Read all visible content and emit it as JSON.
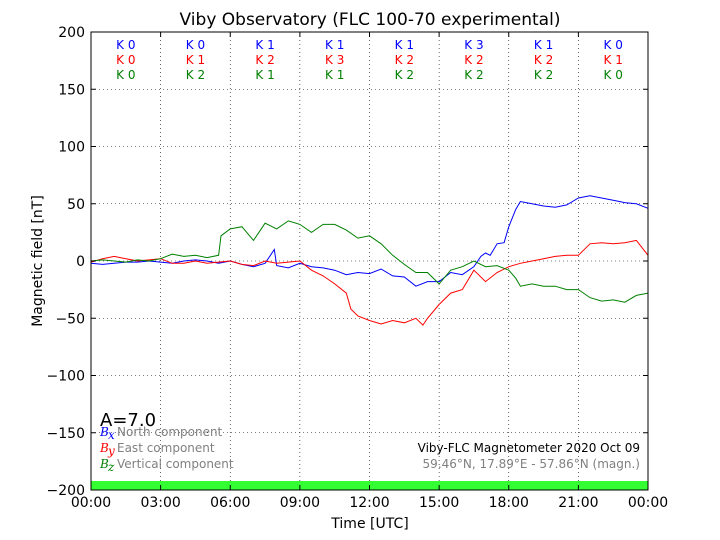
{
  "chart_data": {
    "type": "line",
    "title": "Viby Observatory (FLC 100-70 experimental)",
    "xlabel": "Time [UTC]",
    "ylabel": "Magnetic field [nT]",
    "xlim": [
      0,
      24
    ],
    "ylim": [
      -200,
      200
    ],
    "x_ticks": [
      {
        "v": 0,
        "label": "00:00"
      },
      {
        "v": 3,
        "label": "03:00"
      },
      {
        "v": 6,
        "label": "06:00"
      },
      {
        "v": 9,
        "label": "09:00"
      },
      {
        "v": 12,
        "label": "12:00"
      },
      {
        "v": 15,
        "label": "15:00"
      },
      {
        "v": 18,
        "label": "18:00"
      },
      {
        "v": 21,
        "label": "21:00"
      },
      {
        "v": 24,
        "label": "00:00"
      }
    ],
    "y_ticks": [
      {
        "v": 200,
        "label": "200"
      },
      {
        "v": 150,
        "label": "150"
      },
      {
        "v": 100,
        "label": "100"
      },
      {
        "v": 50,
        "label": "50"
      },
      {
        "v": 0,
        "label": "0"
      },
      {
        "v": -50,
        "label": "−50"
      },
      {
        "v": -100,
        "label": "−100"
      },
      {
        "v": -150,
        "label": "−150"
      },
      {
        "v": -200,
        "label": "−200"
      }
    ],
    "grid": true,
    "series": [
      {
        "name": "North component",
        "symbol": "B",
        "subscript": "x",
        "color": "#0000ff",
        "x": [
          0,
          0.5,
          1,
          1.5,
          2,
          2.5,
          3,
          3.5,
          4,
          4.5,
          5,
          5.5,
          6,
          6.5,
          7,
          7.5,
          7.9,
          8,
          8.5,
          9,
          9.5,
          10,
          10.5,
          11,
          11.5,
          12,
          12.5,
          13,
          13.5,
          14,
          14.5,
          15,
          15.5,
          16,
          16.5,
          16.8,
          17,
          17.2,
          17.5,
          17.8,
          18,
          18.3,
          18.5,
          19,
          19.5,
          20,
          20.5,
          21,
          21.5,
          22,
          22.5,
          23,
          23.5,
          24
        ],
        "y": [
          -2,
          -3,
          -2,
          -1,
          -1,
          0,
          -1,
          -2,
          0,
          1,
          0,
          -2,
          0,
          -3,
          -5,
          -2,
          10,
          -4,
          -6,
          -2,
          -5,
          -6,
          -8,
          -12,
          -10,
          -11,
          -7,
          -13,
          -14,
          -22,
          -18,
          -18,
          -10,
          -12,
          -5,
          4,
          7,
          5,
          15,
          16,
          30,
          45,
          52,
          50,
          48,
          47,
          49,
          55,
          57,
          55,
          53,
          51,
          50,
          46
        ],
        "label_sub": "x"
      },
      {
        "name": "East component",
        "symbol": "B",
        "subscript": "y",
        "color": "#ff0000",
        "x": [
          0,
          0.5,
          1,
          1.5,
          2,
          2.5,
          3,
          3.5,
          4,
          4.5,
          5,
          5.5,
          6,
          6.5,
          7,
          7.5,
          8,
          8.5,
          9,
          9.5,
          10,
          10.5,
          11,
          11.2,
          11.5,
          12,
          12.5,
          13,
          13.5,
          14,
          14.3,
          14.5,
          15,
          15.5,
          16,
          16.5,
          17,
          17.5,
          18,
          18.5,
          19,
          19.5,
          20,
          20.5,
          21,
          21.5,
          22,
          22.5,
          23,
          23.5,
          24
        ],
        "y": [
          -1,
          2,
          4,
          2,
          0,
          1,
          2,
          -2,
          -2,
          0,
          -2,
          -1,
          0,
          -3,
          -4,
          0,
          -2,
          -1,
          0,
          -8,
          -13,
          -20,
          -28,
          -42,
          -48,
          -52,
          -55,
          -52,
          -54,
          -50,
          -56,
          -50,
          -38,
          -28,
          -25,
          -8,
          -18,
          -10,
          -5,
          -2,
          0,
          2,
          4,
          5,
          5,
          15,
          16,
          15,
          16,
          18,
          5
        ],
        "label_sub": "y"
      },
      {
        "name": "Vertical component",
        "symbol": "B",
        "subscript": "z",
        "color": "#008000",
        "x": [
          0,
          0.5,
          1,
          1.5,
          2,
          2.5,
          3,
          3.5,
          4,
          4.5,
          5,
          5.5,
          5.6,
          6,
          6.5,
          7,
          7.5,
          8,
          8.5,
          9,
          9.5,
          10,
          10.5,
          11,
          11.5,
          12,
          12.5,
          13,
          13.5,
          14,
          14.5,
          15,
          15.5,
          16,
          16.5,
          17,
          17.5,
          18,
          18.3,
          18.5,
          19,
          19.5,
          20,
          20.5,
          21,
          21.5,
          22,
          22.5,
          23,
          23.5,
          24
        ],
        "y": [
          0,
          1,
          0,
          -1,
          1,
          0,
          2,
          6,
          4,
          5,
          3,
          5,
          22,
          28,
          30,
          18,
          33,
          28,
          35,
          32,
          25,
          32,
          32,
          27,
          20,
          22,
          15,
          5,
          -3,
          -10,
          -10,
          -20,
          -8,
          -5,
          0,
          -5,
          -4,
          -8,
          -15,
          -22,
          -20,
          -22,
          -22,
          -25,
          -25,
          -32,
          -35,
          -34,
          -36,
          -30,
          -28
        ],
        "label_sub": "z"
      }
    ],
    "k_indices": {
      "x_centers": [
        1.5,
        4.5,
        7.5,
        10.5,
        13.5,
        16.5,
        19.5,
        22.5
      ],
      "rows": [
        {
          "color": "#0000ff",
          "values": [
            "K 0",
            "K 0",
            "K 1",
            "K 1",
            "K 1",
            "K 3",
            "K 1",
            "K 0"
          ]
        },
        {
          "color": "#ff0000",
          "values": [
            "K 0",
            "K 1",
            "K 2",
            "K 3",
            "K 2",
            "K 2",
            "K 2",
            "K 1"
          ]
        },
        {
          "color": "#008000",
          "values": [
            "K 0",
            "K 2",
            "K 1",
            "K 1",
            "K 2",
            "K 2",
            "K 2",
            "K 0"
          ]
        }
      ]
    },
    "a_index": "A=7.0",
    "station_text": "Viby-FLC Magnetometer 2020 Oct 09",
    "coords_text": "59.46°N, 17.89°E - 57.86°N (magn.)",
    "activity_bar_color": "#33ff33"
  }
}
